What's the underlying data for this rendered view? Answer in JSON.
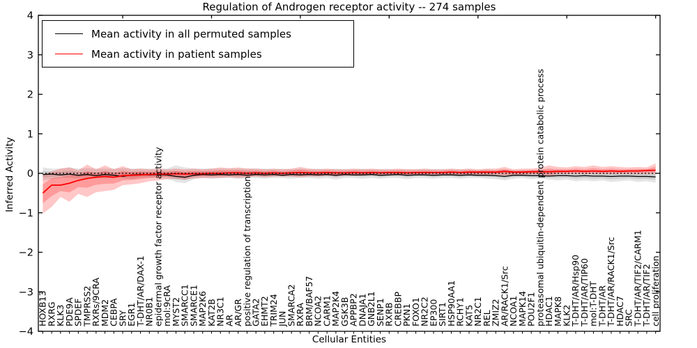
{
  "chart_data": {
    "type": "line",
    "title": "Regulation of Androgen receptor activity -- 274 samples",
    "xlabel": "Cellular Entities",
    "ylabel": "Inferred Activity",
    "ylim": [
      -4,
      4
    ],
    "yticks": [
      -4,
      -3,
      -2,
      -1,
      0,
      1,
      2,
      3,
      4
    ],
    "grid": false,
    "legend_position": "upper left",
    "zero_line": {
      "style": "dotted",
      "color": "#000000",
      "y": 0
    },
    "colors": {
      "permuted_line": "#000000",
      "patient_line": "#ff0000",
      "permuted_band": "#bbbbbb",
      "patient_band": "#ff0000",
      "axes": "#000000",
      "background": "#ffffff"
    },
    "categories": [
      "HOXB13",
      "RXRG",
      "KLK3",
      "PDE9A",
      "SPDEF",
      "TMPRSS2",
      "RXRs/9CRA",
      "MDM2",
      "CEBPA",
      "SRY",
      "EGR1",
      "T-DHT/AR/DAX-1",
      "NR0B1",
      "epidermal growth factor receptor activity",
      "mol:9cRA",
      "MYST2",
      "SMARCC1",
      "SMARCE1",
      "MAP2K6",
      "KAT2B",
      "NR3C1",
      "AR",
      "AR/GR",
      "positive regulation of transcription",
      "GATA2",
      "EHMT2",
      "TRIM24",
      "JUN",
      "SMARCA2",
      "RXRA",
      "BRM/BAF57",
      "NCOA2",
      "CARM1",
      "MAP2K4",
      "GSK3B",
      "APPBP2",
      "DNAJA1",
      "GNB2L1",
      "SENP1",
      "RXRB",
      "CREBBP",
      "PKN1",
      "FOXO1",
      "NR2C2",
      "EP300",
      "SIRT1",
      "HSP90AA1",
      "RCHY1",
      "KAT5",
      "NR2C1",
      "REL",
      "ZMIZ2",
      "AR/RACK1/Src",
      "NCOA1",
      "MAPK14",
      "POU2F1",
      "proteasomal ubiquitin-dependent protein catabolic process",
      "HDAC1",
      "MAPK8",
      "KLK2",
      "T-DHT/AR/Hsp90",
      "T-DHT/AR/TIP60",
      "mol:T-DHT",
      "T-DHT/AR",
      "T-DHT/AR/RACK1/Src",
      "HDAC7",
      "SRC",
      "T-DHT/AR/TIF2/CARM1",
      "T-DHT/AR/TIF2",
      "cell proliferation"
    ],
    "series": [
      {
        "name": "Mean activity in all permuted samples",
        "color": "#000000",
        "values": [
          -0.03,
          -0.02,
          -0.04,
          -0.02,
          -0.05,
          -0.03,
          -0.06,
          -0.03,
          -0.05,
          -0.08,
          -0.04,
          -0.03,
          -0.04,
          -0.03,
          -0.04,
          -0.08,
          -0.1,
          -0.05,
          -0.03,
          -0.04,
          -0.03,
          -0.04,
          -0.03,
          -0.05,
          -0.03,
          -0.04,
          -0.03,
          -0.05,
          -0.03,
          -0.04,
          -0.03,
          -0.04,
          -0.03,
          -0.05,
          -0.03,
          -0.04,
          -0.04,
          -0.03,
          -0.05,
          -0.04,
          -0.03,
          -0.05,
          -0.04,
          -0.04,
          -0.05,
          -0.04,
          -0.04,
          -0.05,
          -0.04,
          -0.05,
          -0.05,
          -0.06,
          -0.08,
          -0.05,
          -0.05,
          -0.06,
          -0.06,
          -0.07,
          -0.06,
          -0.06,
          -0.07,
          -0.06,
          -0.07,
          -0.07,
          -0.08,
          -0.07,
          -0.07,
          -0.08,
          -0.08,
          -0.09
        ]
      },
      {
        "name": "Mean activity in patient samples",
        "color": "#ff0000",
        "values": [
          -0.5,
          -0.3,
          -0.3,
          -0.25,
          -0.18,
          -0.13,
          -0.1,
          -0.08,
          -0.1,
          -0.06,
          -0.05,
          -0.04,
          -0.03,
          -0.02,
          -0.02,
          -0.01,
          -0.02,
          -0.01,
          -0.01,
          0.0,
          0.0,
          0.01,
          0.01,
          0.0,
          0.01,
          0.0,
          0.01,
          0.0,
          0.01,
          0.02,
          0.01,
          0.01,
          0.02,
          0.01,
          0.01,
          0.02,
          0.01,
          0.02,
          0.01,
          0.02,
          0.02,
          0.01,
          0.02,
          0.02,
          0.02,
          0.02,
          0.03,
          0.02,
          0.03,
          0.03,
          0.03,
          0.03,
          0.05,
          0.03,
          0.03,
          0.04,
          0.04,
          0.04,
          0.05,
          0.05,
          0.06,
          0.05,
          0.06,
          0.05,
          0.06,
          0.05,
          0.06,
          0.06,
          0.07,
          0.08
        ]
      }
    ],
    "bands": [
      {
        "name": "permuted-confidence-band",
        "series": 0,
        "color": "#000000",
        "opacity": 0.1,
        "upper": [
          0.15,
          0.12,
          0.12,
          0.15,
          0.12,
          0.13,
          0.12,
          0.12,
          0.12,
          0.13,
          0.12,
          0.12,
          0.12,
          0.12,
          0.12,
          0.2,
          0.15,
          0.12,
          0.12,
          0.12,
          0.12,
          0.12,
          0.12,
          0.12,
          0.12,
          0.12,
          0.1,
          0.12,
          0.1,
          0.12,
          0.1,
          0.12,
          0.1,
          0.12,
          0.1,
          0.1,
          0.12,
          0.1,
          0.1,
          0.1,
          0.1,
          0.1,
          0.1,
          0.1,
          0.1,
          0.1,
          0.1,
          0.1,
          0.1,
          0.08,
          0.1,
          0.08,
          0.1,
          0.08,
          0.08,
          0.08,
          0.08,
          0.08,
          0.08,
          0.06,
          0.08,
          0.06,
          0.08,
          0.06,
          0.08,
          0.06,
          0.06,
          0.08,
          0.06,
          0.06
        ],
        "lower": [
          -0.18,
          -0.15,
          -0.12,
          -0.12,
          -0.14,
          -0.12,
          -0.12,
          -0.14,
          -0.12,
          -0.12,
          -0.16,
          -0.12,
          -0.12,
          -0.12,
          -0.14,
          -0.22,
          -0.25,
          -0.15,
          -0.12,
          -0.14,
          -0.12,
          -0.12,
          -0.14,
          -0.12,
          -0.12,
          -0.14,
          -0.12,
          -0.12,
          -0.14,
          -0.12,
          -0.12,
          -0.14,
          -0.12,
          -0.16,
          -0.12,
          -0.12,
          -0.14,
          -0.12,
          -0.14,
          -0.12,
          -0.12,
          -0.15,
          -0.12,
          -0.12,
          -0.14,
          -0.12,
          -0.12,
          -0.14,
          -0.12,
          -0.12,
          -0.14,
          -0.15,
          -0.18,
          -0.14,
          -0.12,
          -0.15,
          -0.14,
          -0.16,
          -0.18,
          -0.16,
          -0.2,
          -0.18,
          -0.2,
          -0.18,
          -0.22,
          -0.2,
          -0.18,
          -0.22,
          -0.2,
          -0.24
        ]
      },
      {
        "name": "patient-confidence-band",
        "series": 1,
        "color": "#ff0000",
        "opacity": 0.22,
        "upper": [
          -0.05,
          0.05,
          0.12,
          0.15,
          0.08,
          0.22,
          0.1,
          0.2,
          0.1,
          0.18,
          0.1,
          0.12,
          0.1,
          0.12,
          0.1,
          0.12,
          0.1,
          0.12,
          0.1,
          0.12,
          0.15,
          0.13,
          0.15,
          0.12,
          0.12,
          0.1,
          0.12,
          0.1,
          0.12,
          0.16,
          0.12,
          0.1,
          0.12,
          0.1,
          0.1,
          0.12,
          0.1,
          0.12,
          0.1,
          0.1,
          0.12,
          0.1,
          0.1,
          0.12,
          0.1,
          0.1,
          0.12,
          0.1,
          0.12,
          0.1,
          0.12,
          0.12,
          0.16,
          0.1,
          0.12,
          0.12,
          0.14,
          0.2,
          0.16,
          0.15,
          0.18,
          0.16,
          0.2,
          0.16,
          0.18,
          0.16,
          0.15,
          0.16,
          0.15,
          0.25
        ],
        "lower": [
          -1.02,
          -0.85,
          -0.6,
          -0.72,
          -0.52,
          -0.6,
          -0.48,
          -0.45,
          -0.42,
          -0.3,
          -0.28,
          -0.25,
          -0.2,
          -0.18,
          -0.15,
          -0.14,
          -0.16,
          -0.13,
          -0.12,
          -0.12,
          -0.12,
          -0.1,
          -0.12,
          -0.1,
          -0.08,
          -0.1,
          -0.08,
          -0.08,
          -0.08,
          -0.1,
          -0.08,
          -0.08,
          -0.06,
          -0.08,
          -0.06,
          -0.06,
          -0.06,
          -0.05,
          -0.06,
          -0.05,
          -0.05,
          -0.06,
          -0.05,
          -0.05,
          -0.04,
          -0.05,
          -0.04,
          -0.05,
          -0.04,
          -0.04,
          -0.04,
          -0.04,
          -0.06,
          -0.04,
          -0.04,
          -0.03,
          -0.03,
          -0.08,
          -0.02,
          -0.02,
          -0.02,
          -0.02,
          -0.02,
          -0.02,
          -0.02,
          -0.02,
          -0.02,
          -0.02,
          -0.02,
          -0.02
        ]
      }
    ]
  }
}
